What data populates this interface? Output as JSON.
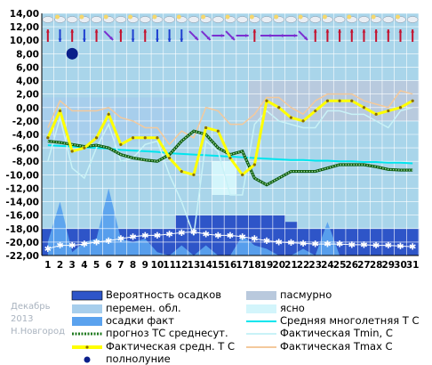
{
  "chart_data": {
    "type": "line",
    "x": [
      1,
      2,
      3,
      4,
      5,
      6,
      7,
      8,
      9,
      10,
      11,
      12,
      13,
      14,
      15,
      16,
      17,
      18,
      19,
      20,
      21,
      22,
      23,
      24,
      25,
      26,
      27,
      28,
      29,
      30,
      31
    ],
    "x_tick_labels": [
      "1",
      "2",
      "3",
      "4",
      "5",
      "6",
      "7",
      "8",
      "9",
      "10",
      "11",
      "12",
      "13",
      "14",
      "15",
      "16",
      "17",
      "18",
      "19",
      "20",
      "21",
      "22",
      "23",
      "24",
      "25",
      "26",
      "27",
      "28",
      "29",
      "30",
      "31"
    ],
    "y_tick_labels": [
      "14,00",
      "12,00",
      "10,00",
      "8,00",
      "6,00",
      "4,00",
      "2,00",
      "0,00",
      "-2,00",
      "-4,00",
      "-6,00",
      "-8,00",
      "-10,00",
      "-12,00",
      "-14,00",
      "-16,00",
      "-18,00",
      "-20,00",
      "-22,00"
    ],
    "ylim": [
      -22,
      14
    ],
    "grid": true,
    "series": [
      {
        "name": "Фактическая средн. Т С",
        "color": "#ffff00",
        "values": [
          -4.5,
          -0.5,
          -6.5,
          -6,
          -4.5,
          -1,
          -5.5,
          -4.5,
          -4.5,
          -4.5,
          -7.5,
          -9.5,
          -10,
          -3,
          -3.5,
          -7.5,
          -10,
          -8.5,
          1,
          0,
          -1.5,
          -2,
          -0.5,
          1,
          1,
          1,
          0,
          -1,
          -0.5,
          0,
          1
        ]
      },
      {
        "name": "Фактическая Tmin, C",
        "color": "#c9f2f7",
        "values": [
          -8,
          -1.5,
          -9,
          -10.5,
          -6,
          -2.5,
          -8,
          -7.5,
          -5.5,
          -5,
          -10,
          -14,
          -19,
          -5,
          -6.5,
          -13,
          -13,
          -2.5,
          -0.5,
          -2,
          -2.5,
          -3,
          -3,
          -0.5,
          -0.5,
          -1,
          -1,
          -2,
          -3,
          -0.5,
          0
        ]
      },
      {
        "name": "Фактическая Tmax C",
        "color": "#f4c99c",
        "values": [
          -3,
          1,
          -0.5,
          -0.5,
          -0.5,
          0,
          -1.5,
          -2,
          -3,
          -3,
          -5.5,
          -3.5,
          -4.5,
          0,
          -0.5,
          -2.5,
          -2.5,
          -1,
          1.5,
          1.5,
          0,
          -1,
          1,
          2,
          2,
          2,
          1,
          0.5,
          0,
          2.5,
          2
        ]
      },
      {
        "name": "прогноз ТС среднесут.",
        "color": "#1f7a1f",
        "values": [
          -5,
          -5.2,
          -5.5,
          -5.8,
          -5.6,
          -6,
          -7,
          -7.5,
          -7.8,
          -8,
          -7,
          -5,
          -3.5,
          -4,
          -6,
          -7,
          -6.5,
          -10.5,
          -11.5,
          -10.5,
          -9.5,
          -9.5,
          -9.5,
          -9,
          -8.5,
          -8.5,
          -8.5,
          -8.8,
          -9.2,
          -9.3,
          -9.3
        ]
      },
      {
        "name": "Средняя многолетняя Т С",
        "color": "#00e5ee",
        "values": [
          -5.6,
          -5.7,
          -5.8,
          -5.9,
          -6.0,
          -6.1,
          -6.3,
          -6.4,
          -6.5,
          -6.6,
          -6.8,
          -6.9,
          -7.0,
          -7.1,
          -7.2,
          -7.3,
          -7.4,
          -7.5,
          -7.6,
          -7.7,
          -7.8,
          -7.8,
          -7.9,
          -7.9,
          -8.0,
          -8.0,
          -8.1,
          -8.1,
          -8.2,
          -8.2,
          -8.3
        ]
      }
    ],
    "precip_probability": {
      "name": "Вероятность осадков",
      "color": "#2e55c8",
      "values": [
        -18,
        -18,
        -18,
        -18,
        -18,
        -18,
        -18,
        -18,
        -18,
        -18,
        -18,
        -16,
        -16,
        -16,
        -16,
        -16,
        -16,
        -16,
        -16,
        -16,
        -17,
        -18,
        -18,
        -18,
        -18,
        -18,
        -18,
        -18,
        -18,
        -18,
        -18
      ]
    },
    "precip_fact": {
      "name": "осадки факт",
      "color": "#5aa2ee",
      "values": [
        -20,
        -14,
        -21.5,
        -20,
        -19.5,
        -12,
        -19.5,
        -20,
        -19.5,
        -21.5,
        -22,
        -20.5,
        -22,
        -20.5,
        -22,
        -22,
        -19,
        -20.5,
        -21,
        -22,
        -22,
        -21,
        -22,
        -17,
        -22,
        -22,
        -22,
        -22,
        -22,
        -22,
        -22
      ]
    },
    "snow_series": {
      "name": "snow",
      "color": "#ffffff",
      "values": [
        -21,
        -20.5,
        -20.5,
        -20.3,
        -20,
        -19.8,
        -19.5,
        -19.2,
        -19,
        -19,
        -18.8,
        -18.6,
        -18.5,
        -18.8,
        -19,
        -19,
        -19.2,
        -19.5,
        -19.8,
        -20,
        -20.1,
        -20.2,
        -20.3,
        -20.3,
        -20.3,
        -20.4,
        -20.4,
        -20.5,
        -20.5,
        -20.6,
        -20.7
      ]
    },
    "overcast_days": [
      18,
      19,
      20,
      21,
      22,
      23,
      24,
      25,
      26,
      27,
      28,
      29,
      30,
      31
    ],
    "variable_cloud_days": [
      1,
      2,
      3,
      4,
      5,
      6,
      7,
      8,
      9,
      10,
      11
    ],
    "full_moon_day": 3,
    "wind_arrows": [
      {
        "day": 1,
        "color": "#c4122f",
        "dir": "up"
      },
      {
        "day": 2,
        "color": "#1e3fd0",
        "dir": "down"
      },
      {
        "day": 3,
        "color": "#c4122f",
        "dir": "up"
      },
      {
        "day": 4,
        "color": "#1e3fd0",
        "dir": "down"
      },
      {
        "day": 5,
        "color": "#c4122f",
        "dir": "up"
      },
      {
        "day": 6,
        "color": "#7b2fd0",
        "dir": "down-right"
      },
      {
        "day": 7,
        "color": "#c4122f",
        "dir": "up"
      },
      {
        "day": 8,
        "color": "#1e3fd0",
        "dir": "down"
      },
      {
        "day": 9,
        "color": "#c4122f",
        "dir": "up"
      },
      {
        "day": 10,
        "color": "#1e3fd0",
        "dir": "down"
      },
      {
        "day": 11,
        "color": "#1e3fd0",
        "dir": "down"
      },
      {
        "day": 12,
        "color": "#1e3fd0",
        "dir": "down"
      },
      {
        "day": 13,
        "color": "#7b2fd0",
        "dir": "down-right"
      },
      {
        "day": 14,
        "color": "#7b2fd0",
        "dir": "down-right"
      },
      {
        "day": 15,
        "color": "#7b2fd0",
        "dir": "right"
      },
      {
        "day": 16,
        "color": "#7b2fd0",
        "dir": "down-right"
      },
      {
        "day": 17,
        "color": "#7b2fd0",
        "dir": "right"
      },
      {
        "day": 18,
        "color": "#c4122f",
        "dir": "up"
      },
      {
        "day": 19,
        "color": "#7b2fd0",
        "dir": "right"
      },
      {
        "day": 20,
        "color": "#7b2fd0",
        "dir": "right"
      },
      {
        "day": 21,
        "color": "#7b2fd0",
        "dir": "right"
      },
      {
        "day": 22,
        "color": "#7b2fd0",
        "dir": "down-right"
      },
      {
        "day": 23,
        "color": "#c4122f",
        "dir": "up"
      },
      {
        "day": 24,
        "color": "#c4122f",
        "dir": "up"
      },
      {
        "day": 25,
        "color": "#c4122f",
        "dir": "up"
      },
      {
        "day": 26,
        "color": "#c4122f",
        "dir": "up"
      },
      {
        "day": 27,
        "color": "#c4122f",
        "dir": "up"
      },
      {
        "day": 28,
        "color": "#c4122f",
        "dir": "up"
      },
      {
        "day": 29,
        "color": "#c4122f",
        "dir": "up"
      },
      {
        "day": 30,
        "color": "#c4122f",
        "dir": "up"
      },
      {
        "day": 31,
        "color": "#c4122f",
        "dir": "up"
      }
    ],
    "legend": [
      {
        "label": "Вероятность осадков",
        "color": "#2e55c8",
        "kind": "box"
      },
      {
        "label": "перемен. обл.",
        "color": "#a7ceec",
        "kind": "box"
      },
      {
        "label": "осадки факт",
        "color": "#5aa2ee",
        "kind": "box"
      },
      {
        "label": "прогноз ТС среднесут.",
        "color": "#1f7a1f",
        "kind": "dotline"
      },
      {
        "label": "Фактическая средн. Т С",
        "color": "#ffff00",
        "kind": "thick"
      },
      {
        "label": "полнолуние",
        "color": "#0b1f8a",
        "kind": "dot"
      },
      {
        "label": "пасмурно",
        "color": "#b9c9dd",
        "kind": "box"
      },
      {
        "label": "ясно",
        "color": "#d3f5fb",
        "kind": "box"
      },
      {
        "label": "Средняя многолетняя Т С",
        "color": "#00e5ee",
        "kind": "line"
      },
      {
        "label": "Фактическая Tmin, C",
        "color": "#c9f2f7",
        "kind": "line"
      },
      {
        "label": "Фактическая Tmax C",
        "color": "#f4c99c",
        "kind": "line"
      }
    ],
    "watermark": [
      "Декабрь",
      "2013",
      "Н.Новгород"
    ]
  },
  "colors": {
    "plot_bg": "#a9d5ea",
    "grid": "#ffffff",
    "axis": "#000000",
    "overcast": "#b9c9dd",
    "clear": "#d3f5fb"
  }
}
